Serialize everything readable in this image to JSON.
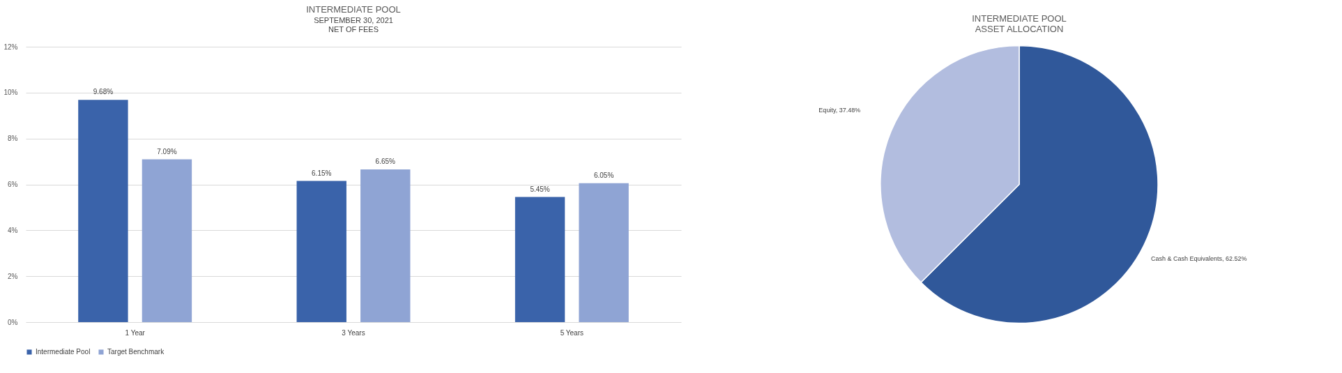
{
  "chart_data": [
    {
      "type": "bar",
      "title": "INTERMEDIATE POOL",
      "subtitle": "SEPTEMBER 30, 2021\nNET OF FEES",
      "categories": [
        "1 Year",
        "3 Years",
        "5 Years"
      ],
      "series": [
        {
          "name": "Intermediate Pool",
          "color": "#3a63aa",
          "values": [
            9.68,
            6.15,
            5.45
          ],
          "value_labels": [
            "9.68%",
            "6.15%",
            "5.45%"
          ]
        },
        {
          "name": "Target Benchmark",
          "color": "#8fa4d4",
          "values": [
            7.09,
            6.65,
            6.05
          ],
          "value_labels": [
            "7.09%",
            "6.65%",
            "6.05%"
          ]
        }
      ],
      "ylim": [
        0,
        12
      ],
      "yticks": [
        {
          "value": 0,
          "label": "0%"
        },
        {
          "value": 2,
          "label": "2%"
        },
        {
          "value": 4,
          "label": "4%"
        },
        {
          "value": 6,
          "label": "6%"
        },
        {
          "value": 8,
          "label": "8%"
        },
        {
          "value": 10,
          "label": "10%"
        },
        {
          "value": 12,
          "label": "12%"
        }
      ],
      "grid": "y",
      "legend": "bottom"
    },
    {
      "type": "pie",
      "title": "INTERMEDIATE POOL\nASSET ALLOCATION",
      "categories": [
        "Cash & Cash Equivalents",
        "Equity"
      ],
      "values": [
        62.52,
        37.48
      ],
      "value_labels": [
        "62.52%",
        "37.48%"
      ],
      "colors": [
        "#30589a",
        "#b2bddf"
      ]
    }
  ]
}
